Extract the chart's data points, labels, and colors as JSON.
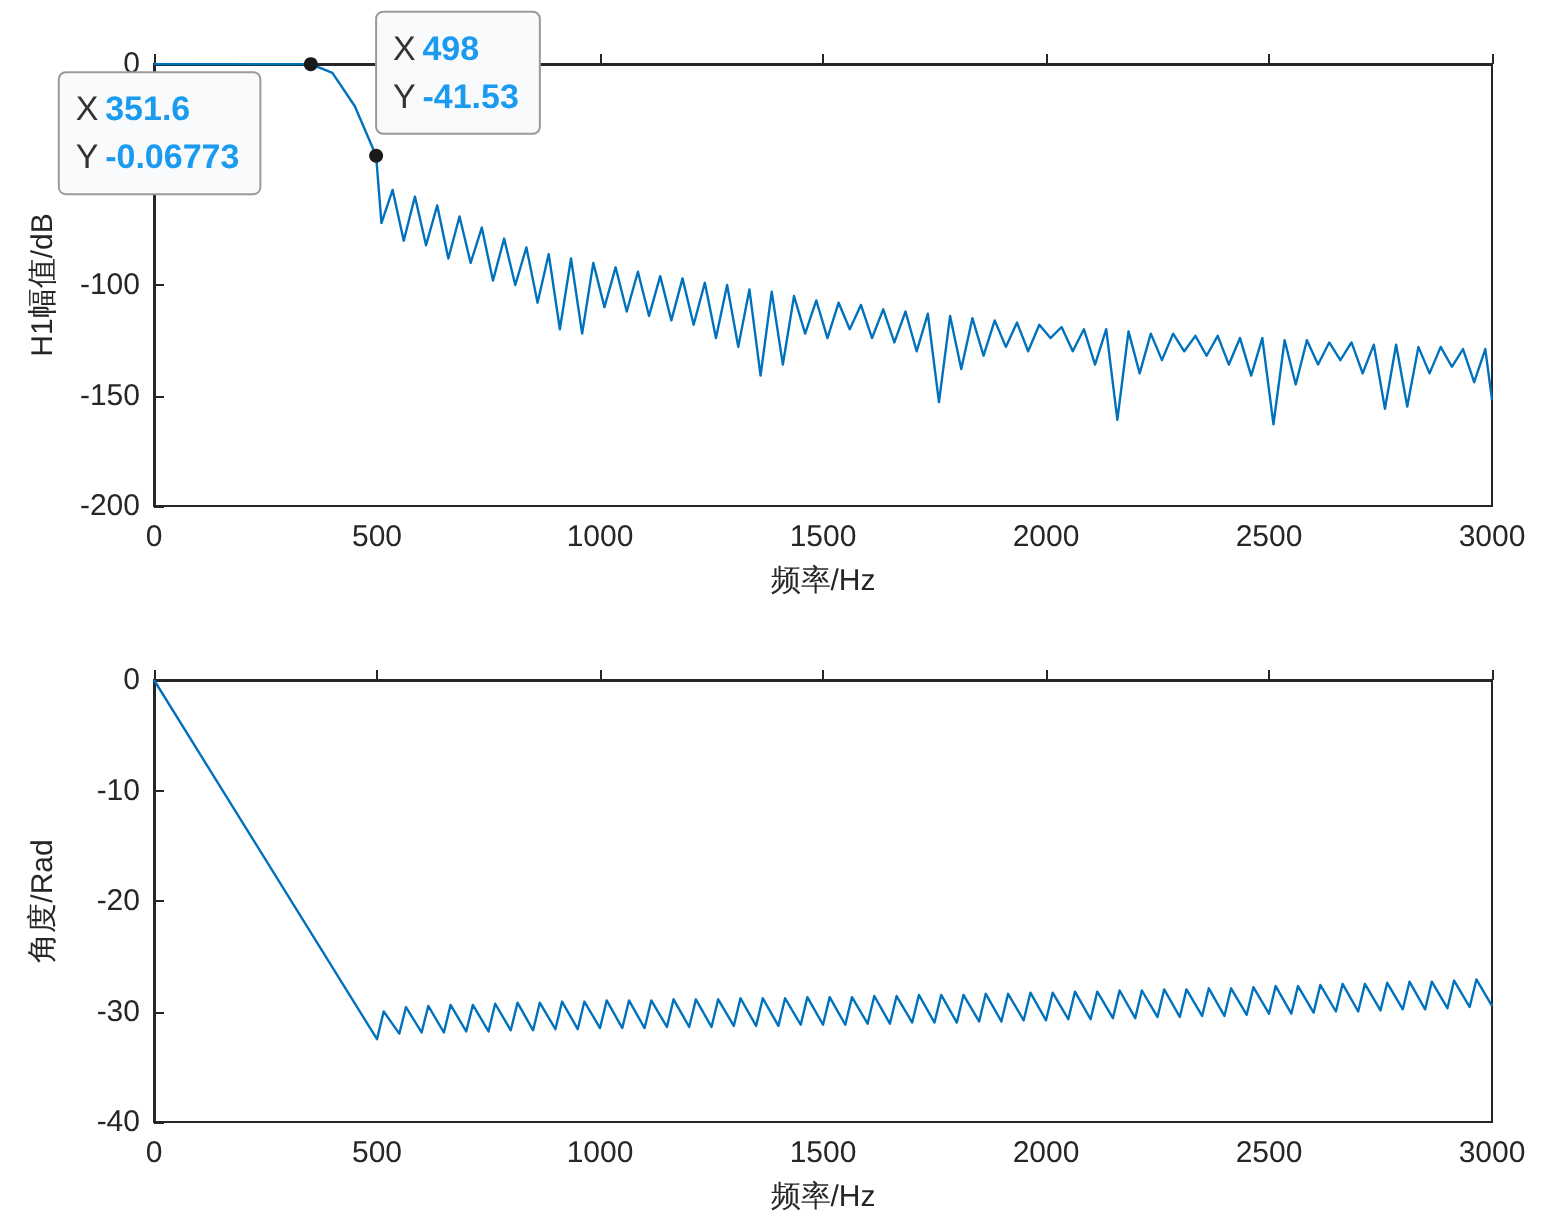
{
  "chart_data": [
    {
      "type": "line",
      "xlabel": "频率/Hz",
      "ylabel": "H1幅值/dB",
      "xlim": [
        0,
        3000
      ],
      "xticks": [
        0,
        500,
        1000,
        1500,
        2000,
        2500,
        3000
      ],
      "ylim": [
        -200,
        0
      ],
      "yticks": [
        0,
        {
          "value": -50,
          "label": null
        },
        -100,
        -150,
        -200
      ],
      "grid": false,
      "annotations": [
        {
          "text": "X 351.6\nY -0.06773",
          "x": 351.6,
          "y": -0.06773
        },
        {
          "text": "X 498\nY -41.53",
          "x": 498,
          "y": -41.53
        }
      ],
      "series": [
        {
          "color": "#0072bd",
          "x": [
            0,
            351.6,
            400,
            450,
            498,
            510,
            535,
            560,
            585,
            610,
            635,
            660,
            685,
            710,
            735,
            760,
            785,
            810,
            835,
            860,
            885,
            910,
            935,
            960,
            985,
            1010,
            1035,
            1060,
            1085,
            1110,
            1135,
            1160,
            1185,
            1210,
            1235,
            1260,
            1285,
            1310,
            1335,
            1360,
            1385,
            1410,
            1435,
            1460,
            1485,
            1510,
            1535,
            1560,
            1585,
            1610,
            1635,
            1660,
            1685,
            1710,
            1735,
            1760,
            1785,
            1810,
            1835,
            1860,
            1885,
            1910,
            1935,
            1960,
            1985,
            2010,
            2035,
            2060,
            2085,
            2110,
            2135,
            2160,
            2185,
            2210,
            2235,
            2260,
            2285,
            2310,
            2335,
            2360,
            2385,
            2410,
            2435,
            2460,
            2485,
            2510,
            2535,
            2560,
            2585,
            2610,
            2635,
            2660,
            2685,
            2710,
            2735,
            2760,
            2785,
            2810,
            2835,
            2860,
            2885,
            2910,
            2935,
            2960,
            2985,
            3000
          ],
          "values": [
            0,
            -0.06773,
            -4,
            -19,
            -41.53,
            -72,
            -57,
            -80,
            -60,
            -82,
            -64,
            -88,
            -69,
            -90,
            -74,
            -98,
            -79,
            -100,
            -83,
            -108,
            -86,
            -120,
            -88,
            -122,
            -90,
            -110,
            -92,
            -112,
            -94,
            -114,
            -96,
            -116,
            -97,
            -118,
            -99,
            -124,
            -100,
            -128,
            -102,
            -141,
            -103,
            -136,
            -105,
            -122,
            -107,
            -124,
            -108,
            -120,
            -109,
            -124,
            -111,
            -126,
            -112,
            -130,
            -113,
            -153,
            -114,
            -138,
            -115,
            -132,
            -116,
            -128,
            -117,
            -130,
            -118,
            -124,
            -119,
            -130,
            -120,
            -136,
            -120,
            -161,
            -121,
            -140,
            -122,
            -134,
            -122,
            -130,
            -123,
            -132,
            -123,
            -136,
            -124,
            -141,
            -124,
            -163,
            -125,
            -145,
            -125,
            -136,
            -126,
            -134,
            -126,
            -140,
            -127,
            -156,
            -127,
            -155,
            -128,
            -140,
            -128,
            -137,
            -129,
            -144,
            -129,
            -152
          ]
        }
      ]
    },
    {
      "type": "line",
      "xlabel": "频率/Hz",
      "ylabel": "角度/Rad",
      "xlim": [
        0,
        3000
      ],
      "xticks": [
        0,
        500,
        1000,
        1500,
        2000,
        2500,
        3000
      ],
      "ylim": [
        -40,
        0
      ],
      "yticks": [
        0,
        -10,
        -20,
        -30,
        -40
      ],
      "grid": false,
      "series": [
        {
          "color": "#0072bd",
          "x": [
            0,
            500,
            515,
            550,
            565,
            600,
            615,
            650,
            665,
            700,
            715,
            750,
            765,
            800,
            815,
            850,
            865,
            900,
            915,
            950,
            965,
            1000,
            1015,
            1050,
            1065,
            1100,
            1115,
            1150,
            1165,
            1200,
            1215,
            1250,
            1265,
            1300,
            1315,
            1350,
            1365,
            1400,
            1415,
            1450,
            1465,
            1500,
            1515,
            1550,
            1565,
            1600,
            1615,
            1650,
            1665,
            1700,
            1715,
            1750,
            1765,
            1800,
            1815,
            1850,
            1865,
            1900,
            1915,
            1950,
            1965,
            2000,
            2015,
            2050,
            2065,
            2100,
            2115,
            2150,
            2165,
            2200,
            2215,
            2250,
            2265,
            2300,
            2315,
            2350,
            2365,
            2400,
            2415,
            2450,
            2465,
            2500,
            2515,
            2550,
            2565,
            2600,
            2615,
            2650,
            2665,
            2700,
            2715,
            2750,
            2765,
            2800,
            2815,
            2850,
            2865,
            2900,
            2915,
            2950,
            2965,
            3000
          ],
          "values": [
            0,
            -32.5,
            -30.0,
            -32.0,
            -29.6,
            -31.9,
            -29.5,
            -31.9,
            -29.4,
            -31.8,
            -29.4,
            -31.8,
            -29.3,
            -31.7,
            -29.2,
            -31.7,
            -29.2,
            -31.6,
            -29.1,
            -31.6,
            -29.1,
            -31.5,
            -29.0,
            -31.5,
            -29.0,
            -31.5,
            -29.0,
            -31.4,
            -28.9,
            -31.4,
            -28.9,
            -31.4,
            -28.9,
            -31.3,
            -28.8,
            -31.3,
            -28.8,
            -31.3,
            -28.8,
            -31.2,
            -28.7,
            -31.2,
            -28.7,
            -31.2,
            -28.7,
            -31.1,
            -28.6,
            -31.1,
            -28.6,
            -31.0,
            -28.5,
            -31.0,
            -28.5,
            -31.0,
            -28.5,
            -30.9,
            -28.4,
            -30.9,
            -28.4,
            -30.8,
            -28.3,
            -30.8,
            -28.3,
            -30.7,
            -28.2,
            -30.7,
            -28.2,
            -30.6,
            -28.1,
            -30.6,
            -28.1,
            -30.5,
            -28.0,
            -30.5,
            -28.0,
            -30.4,
            -27.9,
            -30.4,
            -27.9,
            -30.3,
            -27.8,
            -30.2,
            -27.7,
            -30.2,
            -27.7,
            -30.1,
            -27.6,
            -30.0,
            -27.5,
            -30.0,
            -27.5,
            -29.9,
            -27.4,
            -29.8,
            -27.3,
            -29.8,
            -27.3,
            -29.7,
            -27.2,
            -29.6,
            -27.1,
            -29.5
          ]
        }
      ]
    }
  ]
}
